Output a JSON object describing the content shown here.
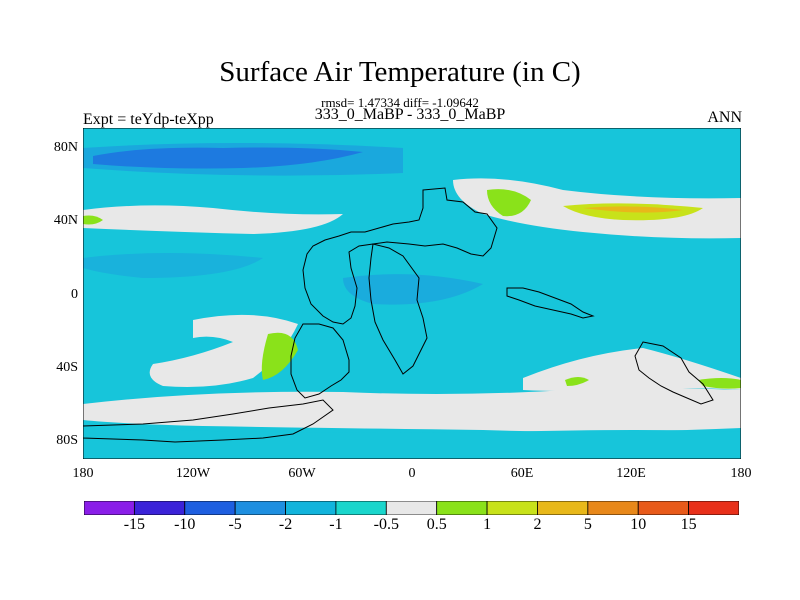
{
  "title": "Surface Air Temperature (in C)",
  "subtitle": "rmsd= 1.47334 diff= -1.09642",
  "left_label": "Expt = teYdp-teXpp",
  "center_label": "333_0_MaBP - 333_0_MaBP",
  "right_label": "ANN",
  "lat_ticks": [
    "80N",
    "40N",
    "0",
    "40S",
    "80S"
  ],
  "lon_ticks": [
    "180",
    "120W",
    "60W",
    "0",
    "60E",
    "120E",
    "180"
  ],
  "colorbar": {
    "labels": [
      "-15",
      "-10",
      "-5",
      "-2",
      "-1",
      "-0.5",
      "0.5",
      "1",
      "2",
      "5",
      "10",
      "15"
    ],
    "colors": [
      "#8a1ee8",
      "#3b23d8",
      "#1e5fe0",
      "#1e8fe0",
      "#12b4dc",
      "#1ad6cc",
      "#e8e8e8",
      "#8ae21a",
      "#c8e21a",
      "#e8b81a",
      "#e8881a",
      "#e85a1a",
      "#e8301a"
    ]
  },
  "palette": {
    "ocean_base": "#17c5da",
    "cold_blue": "#1e8fe0",
    "deep_blue": "#1e5fe0",
    "neutral": "#e8e8e8",
    "warm_green": "#8ae21a",
    "warm_yellow": "#c8e21a",
    "warm_orange": "#e8b81a"
  }
}
